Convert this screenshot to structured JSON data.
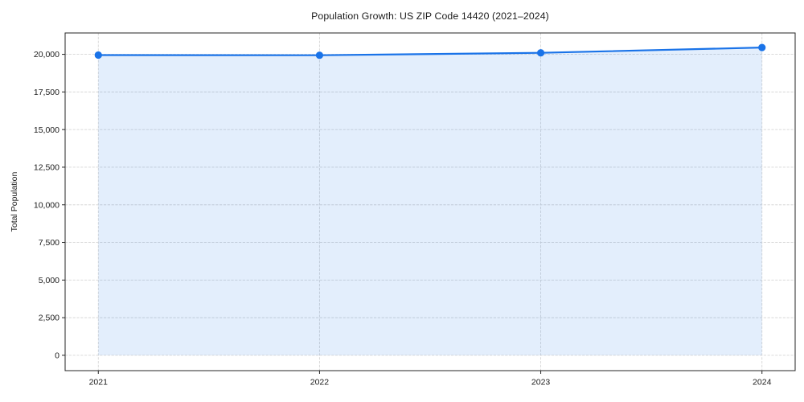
{
  "chart_data": {
    "type": "area",
    "title": "Population Growth: US ZIP Code 14420 (2021–2024)",
    "xlabel": "",
    "ylabel": "Total Population",
    "x": [
      2021,
      2022,
      2023,
      2024
    ],
    "series": [
      {
        "name": "Total Population",
        "values": [
          19950,
          19940,
          20100,
          20450
        ]
      }
    ],
    "xticks": [
      2021,
      2022,
      2023,
      2024
    ],
    "xtick_labels": [
      "2021",
      "2022",
      "2023",
      "2024"
    ],
    "yticks": [
      0,
      2500,
      5000,
      7500,
      10000,
      12500,
      15000,
      17500,
      20000
    ],
    "ytick_labels": [
      "0",
      "2,500",
      "5,000",
      "7,500",
      "10,000",
      "12,500",
      "15,000",
      "17,500",
      "20,000"
    ],
    "xlim": [
      2020.85,
      2024.15
    ],
    "ylim": [
      -1020,
      21420
    ],
    "fill_baseline": 0,
    "grid": true,
    "grid_style": "dashed",
    "legend": "none",
    "marker": "circle",
    "colors": {
      "line": "#1a73e8",
      "marker": "#1a73e8",
      "fill": "rgba(26,115,232,0.12)",
      "grid": "#d6d6d6",
      "spine": "#262626",
      "text": "#1a1a1a",
      "background": "#ffffff"
    }
  }
}
